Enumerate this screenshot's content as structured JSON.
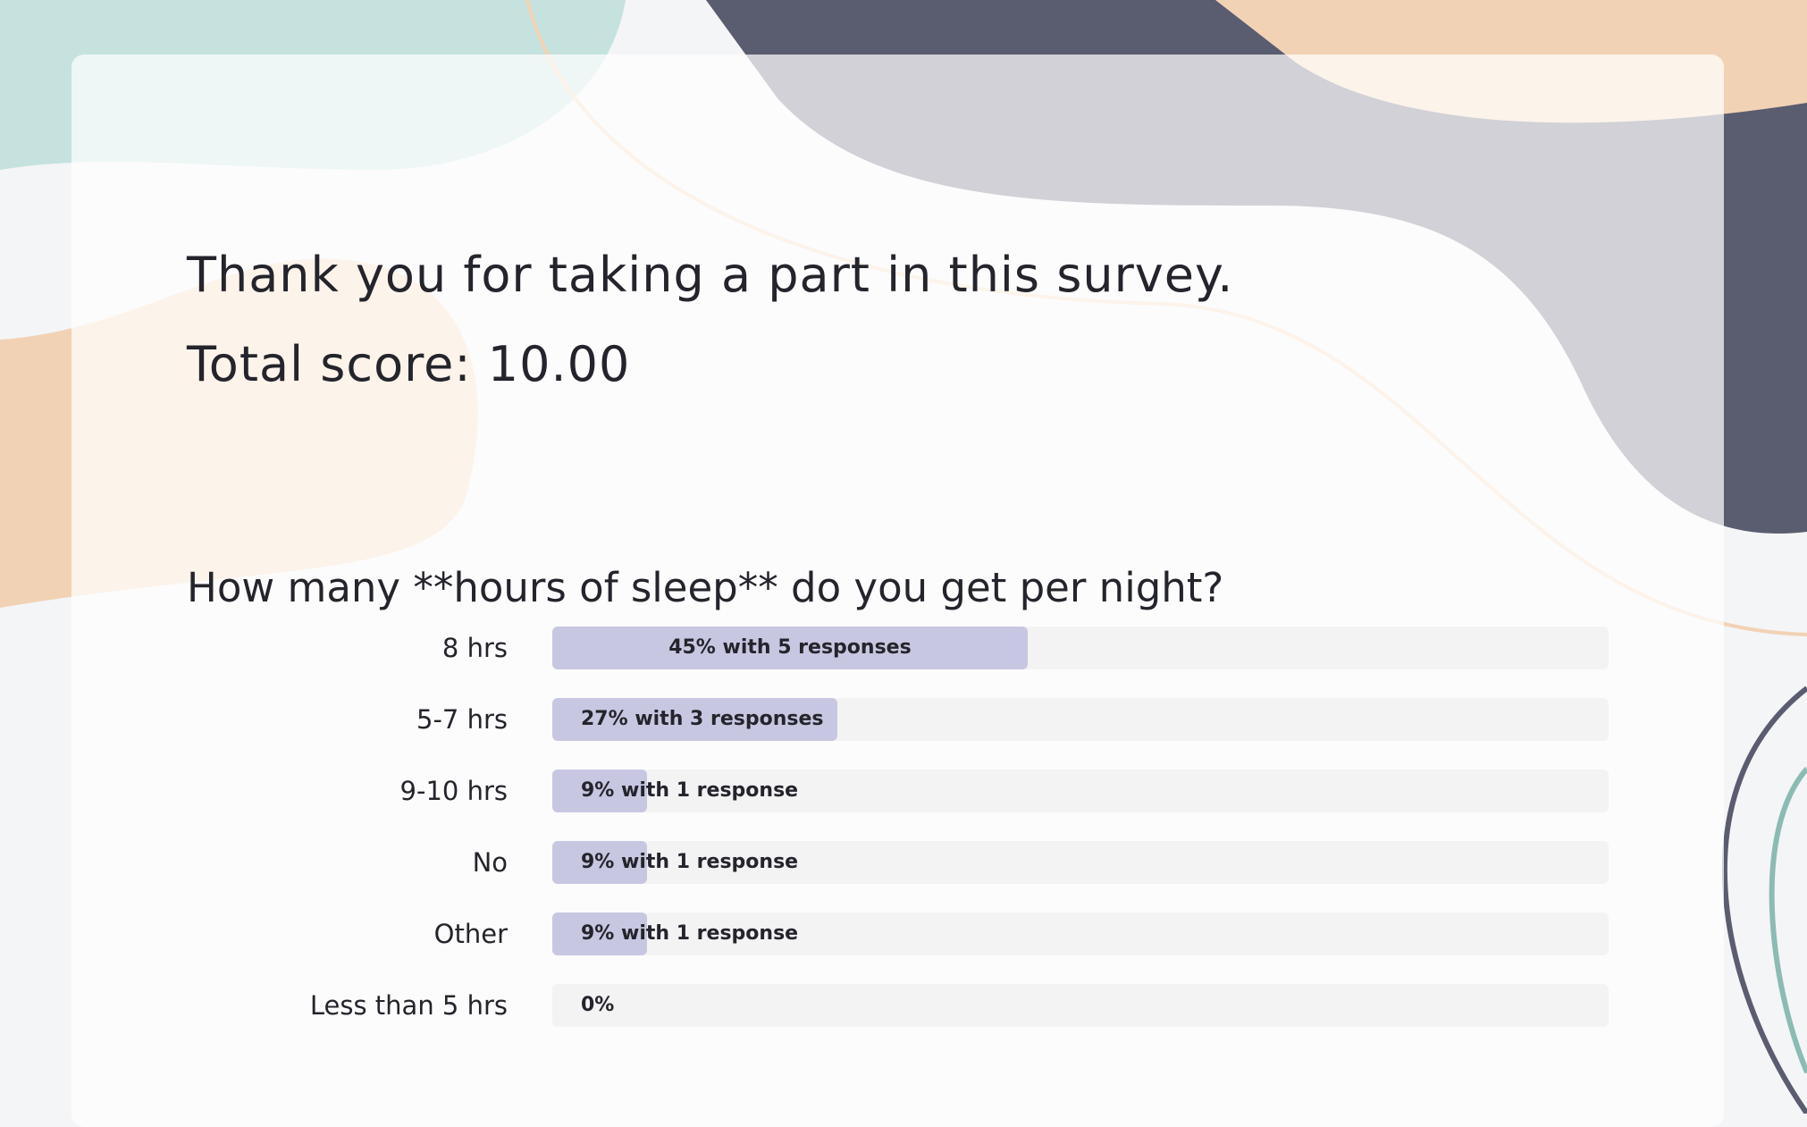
{
  "header": {
    "title": "Thank you for taking a part in this survey.",
    "score": "Total score: 10.00"
  },
  "results": {
    "question": "How many **hours of sleep** do you get per night?",
    "options": [
      {
        "label": "8 hrs",
        "percent": 45,
        "value_label": "45% with 5 responses"
      },
      {
        "label": "5-7 hrs",
        "percent": 27,
        "value_label": "27% with 3 responses"
      },
      {
        "label": "9-10 hrs",
        "percent": 9,
        "value_label": "9% with 1 response"
      },
      {
        "label": "No",
        "percent": 9,
        "value_label": "9% with 1 response"
      },
      {
        "label": "Other",
        "percent": 9,
        "value_label": "9% with 1 response"
      },
      {
        "label": "Less than 5 hrs",
        "percent": 0,
        "value_label": "0%"
      }
    ]
  }
}
